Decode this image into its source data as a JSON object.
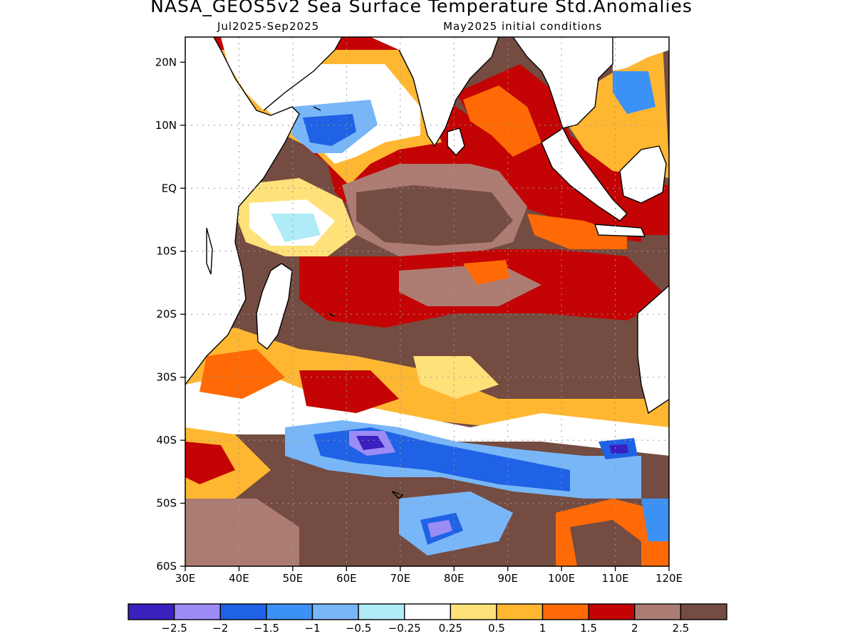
{
  "title": "NASA_GEOS5v2 Sea Surface Temperature Std.Anomalies",
  "subtitle_left": "Jul2025-Sep2025",
  "subtitle_right": "May2025 initial conditions",
  "map": {
    "lon_range": [
      30,
      120
    ],
    "lat_range": [
      -60,
      24
    ],
    "lon_ticks": [
      "30E",
      "40E",
      "50E",
      "60E",
      "70E",
      "80E",
      "90E",
      "100E",
      "110E",
      "120E"
    ],
    "lat_ticks": [
      "20N",
      "10N",
      "EQ",
      "10S",
      "20S",
      "30S",
      "40S",
      "50S",
      "60S"
    ],
    "gridlines": true
  },
  "colorbar": {
    "colors": [
      "#3b1fbf",
      "#9b8cf5",
      "#1f62e5",
      "#3c91f5",
      "#78b6f7",
      "#b0ecf7",
      "#ffffff",
      "#ffe17a",
      "#ffb732",
      "#ff6a06",
      "#c40404",
      "#ac7c72",
      "#744c41"
    ],
    "labels": [
      "−2.5",
      "−2",
      "−1.5",
      "−1",
      "−0.5",
      "−0.25",
      "0.25",
      "0.5",
      "1",
      "1.5",
      "2",
      "2.5"
    ]
  }
}
